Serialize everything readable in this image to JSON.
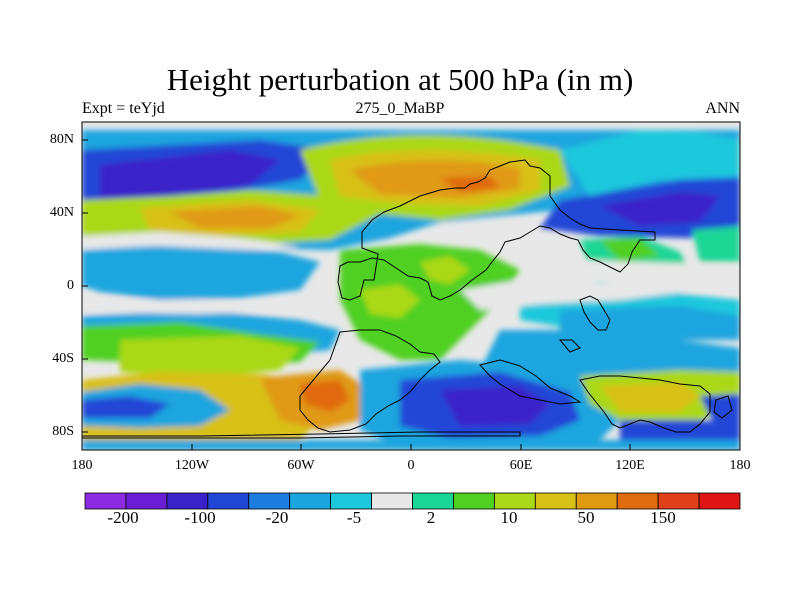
{
  "plot": {
    "title": "Height perturbation at 500 hPa (in m)",
    "left_subtitle": "Expt = teYjd",
    "center_subtitle": "275_0_MaBP",
    "right_subtitle": "ANN"
  },
  "axes": {
    "x_ticks": [
      "180",
      "120W",
      "60W",
      "0",
      "60E",
      "120E",
      "180"
    ],
    "y_ticks": [
      "80N",
      "40N",
      "0",
      "40S",
      "80S"
    ]
  },
  "colorbar": {
    "colors": [
      "#8a2be2",
      "#6a1fd6",
      "#3b21c9",
      "#2046d6",
      "#1e7ee0",
      "#1aa5df",
      "#1ec8dc",
      "#e8e8e8",
      "#1ad696",
      "#50d020",
      "#aad818",
      "#d8c016",
      "#e09a12",
      "#e06a10",
      "#e0401a",
      "#e01616"
    ],
    "labels": [
      "-200",
      "-100",
      "-20",
      "-5",
      "2",
      "10",
      "50",
      "150"
    ]
  },
  "map": {
    "background": "#e8e8e8",
    "outline_color": "#000000"
  }
}
